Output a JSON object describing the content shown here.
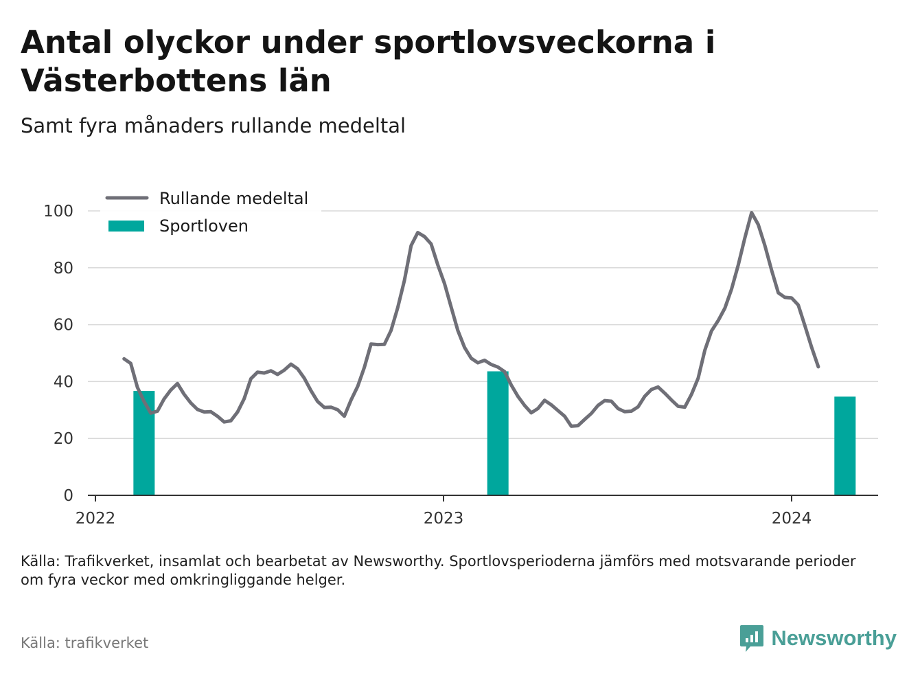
{
  "title": "Antal olyckor under sportlovsveckorna i Västerbottens län",
  "subtitle": "Samt fyra månaders rullande medeltal",
  "note": "Källa: Trafikverket, insamlat och bearbetat av Newsworthy. Sportlovsperioderna jämförs med motsvarande perioder om fyra veckor med omkringliggande helger.",
  "source": "Källa: trafikverket",
  "brand": {
    "name": "Newsworthy",
    "color": "#4a9f97"
  },
  "chart_data": {
    "type": "bar",
    "ylim": [
      0,
      100
    ],
    "y_ticks": [
      "0",
      "20",
      "40",
      "60",
      "80",
      "100"
    ],
    "x_ticks": [
      {
        "label": "2022",
        "x": "2022-01-01"
      },
      {
        "label": "2023",
        "x": "2023-01-01"
      },
      {
        "label": "2024",
        "x": "2024-01-01"
      }
    ],
    "grid": true,
    "legend": {
      "placement": "top-left"
    },
    "series": [
      {
        "name": "Rullande medeltal",
        "type": "line",
        "color": "#6f6f77",
        "points": [
          [
            "2022-01-31",
            48.0
          ],
          [
            "2022-02-07",
            46.4
          ],
          [
            "2022-02-14",
            38.0
          ],
          [
            "2022-02-21",
            33.0
          ],
          [
            "2022-02-28",
            28.9
          ],
          [
            "2022-03-07",
            29.6
          ],
          [
            "2022-03-14",
            33.9
          ],
          [
            "2022-03-21",
            37.0
          ],
          [
            "2022-03-28",
            39.3
          ],
          [
            "2022-04-04",
            35.5
          ],
          [
            "2022-04-11",
            32.5
          ],
          [
            "2022-04-18",
            30.2
          ],
          [
            "2022-04-25",
            29.3
          ],
          [
            "2022-05-02",
            29.4
          ],
          [
            "2022-05-09",
            27.8
          ],
          [
            "2022-05-16",
            25.8
          ],
          [
            "2022-05-23",
            26.2
          ],
          [
            "2022-05-30",
            29.3
          ],
          [
            "2022-06-06",
            34.0
          ],
          [
            "2022-06-13",
            41.0
          ],
          [
            "2022-06-20",
            43.3
          ],
          [
            "2022-06-27",
            43.0
          ],
          [
            "2022-07-04",
            43.8
          ],
          [
            "2022-07-11",
            42.5
          ],
          [
            "2022-07-18",
            44.0
          ],
          [
            "2022-07-25",
            46.1
          ],
          [
            "2022-08-01",
            44.5
          ],
          [
            "2022-08-08",
            41.2
          ],
          [
            "2022-08-15",
            36.8
          ],
          [
            "2022-08-22",
            33.0
          ],
          [
            "2022-08-29",
            30.9
          ],
          [
            "2022-09-05",
            31.0
          ],
          [
            "2022-09-12",
            30.1
          ],
          [
            "2022-09-19",
            27.8
          ],
          [
            "2022-09-26",
            33.5
          ],
          [
            "2022-10-03",
            38.3
          ],
          [
            "2022-10-10",
            45.0
          ],
          [
            "2022-10-17",
            53.2
          ],
          [
            "2022-10-24",
            53.0
          ],
          [
            "2022-10-31",
            53.1
          ],
          [
            "2022-11-07",
            58.0
          ],
          [
            "2022-11-14",
            66.0
          ],
          [
            "2022-11-21",
            75.5
          ],
          [
            "2022-11-28",
            87.8
          ],
          [
            "2022-12-05",
            92.4
          ],
          [
            "2022-12-12",
            91.0
          ],
          [
            "2022-12-19",
            88.4
          ],
          [
            "2022-12-26",
            81.0
          ],
          [
            "2023-01-02",
            74.5
          ],
          [
            "2023-01-09",
            66.2
          ],
          [
            "2023-01-16",
            58.0
          ],
          [
            "2023-01-23",
            52.0
          ],
          [
            "2023-01-30",
            48.2
          ],
          [
            "2023-02-06",
            46.6
          ],
          [
            "2023-02-13",
            47.5
          ],
          [
            "2023-02-20",
            46.0
          ],
          [
            "2023-02-27",
            45.1
          ],
          [
            "2023-03-06",
            43.5
          ],
          [
            "2023-03-13",
            38.8
          ],
          [
            "2023-03-20",
            34.8
          ],
          [
            "2023-03-27",
            31.6
          ],
          [
            "2023-04-03",
            29.0
          ],
          [
            "2023-04-10",
            30.5
          ],
          [
            "2023-04-17",
            33.4
          ],
          [
            "2023-04-24",
            31.8
          ],
          [
            "2023-05-01",
            29.8
          ],
          [
            "2023-05-08",
            27.8
          ],
          [
            "2023-05-15",
            24.3
          ],
          [
            "2023-05-22",
            24.5
          ],
          [
            "2023-05-29",
            26.7
          ],
          [
            "2023-06-05",
            28.8
          ],
          [
            "2023-06-12",
            31.6
          ],
          [
            "2023-06-19",
            33.3
          ],
          [
            "2023-06-26",
            33.1
          ],
          [
            "2023-07-03",
            30.5
          ],
          [
            "2023-07-10",
            29.4
          ],
          [
            "2023-07-17",
            29.6
          ],
          [
            "2023-07-24",
            31.1
          ],
          [
            "2023-07-31",
            34.8
          ],
          [
            "2023-08-07",
            37.2
          ],
          [
            "2023-08-14",
            38.1
          ],
          [
            "2023-08-21",
            35.9
          ],
          [
            "2023-08-28",
            33.5
          ],
          [
            "2023-09-04",
            31.3
          ],
          [
            "2023-09-11",
            31.0
          ],
          [
            "2023-09-18",
            35.5
          ],
          [
            "2023-09-25",
            41.2
          ],
          [
            "2023-10-02",
            51.0
          ],
          [
            "2023-10-09",
            57.8
          ],
          [
            "2023-10-16",
            61.4
          ],
          [
            "2023-10-23",
            65.8
          ],
          [
            "2023-10-30",
            72.5
          ],
          [
            "2023-11-06",
            80.9
          ],
          [
            "2023-11-13",
            90.5
          ],
          [
            "2023-11-20",
            99.4
          ],
          [
            "2023-11-27",
            95.2
          ],
          [
            "2023-12-04",
            87.8
          ],
          [
            "2023-12-11",
            79.2
          ],
          [
            "2023-12-18",
            71.2
          ],
          [
            "2023-12-25",
            69.6
          ],
          [
            "2024-01-01",
            69.4
          ],
          [
            "2024-01-08",
            66.9
          ],
          [
            "2024-01-15",
            59.6
          ],
          [
            "2024-01-22",
            52.0
          ],
          [
            "2024-01-29",
            45.2
          ]
        ]
      },
      {
        "name": "Sportloven",
        "type": "bar",
        "color": "#00a79d",
        "points": [
          [
            "2022-02-21",
            36.7
          ],
          [
            "2023-02-27",
            43.6
          ],
          [
            "2024-02-26",
            34.7
          ]
        ]
      }
    ]
  }
}
